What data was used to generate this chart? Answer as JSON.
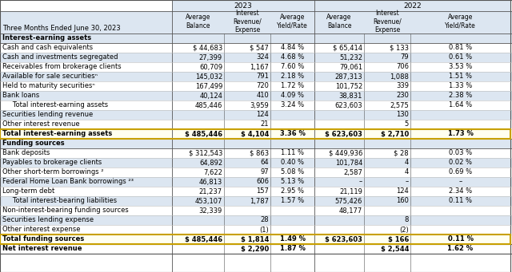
{
  "title_left": "Three Months Ended June 30, 2023",
  "section1_header": "Interest-earning assets",
  "section2_header": "Funding sources",
  "rows": [
    {
      "label": "Cash and cash equivalents",
      "s23_ab": "$ 44,683",
      "s23_ir": "$ 547",
      "s23_yr": "4.84 %",
      "s22_ab": "$ 65,414",
      "s22_ir": "$ 133",
      "s22_yr": "0.81 %",
      "indent": false,
      "bold": false,
      "highlight": false,
      "section": 1
    },
    {
      "label": "Cash and investments segregated",
      "s23_ab": "27,399",
      "s23_ir": "324",
      "s23_yr": "4.68 %",
      "s22_ab": "51,232",
      "s22_ir": "79",
      "s22_yr": "0.61 %",
      "indent": false,
      "bold": false,
      "highlight": false,
      "section": 1
    },
    {
      "label": "Receivables from brokerage clients",
      "s23_ab": "60,709",
      "s23_ir": "1,167",
      "s23_yr": "7.60 %",
      "s22_ab": "79,061",
      "s22_ir": "706",
      "s22_yr": "3.53 %",
      "indent": false,
      "bold": false,
      "highlight": false,
      "section": 1
    },
    {
      "label": "Available for sale securitiesⁿ",
      "s23_ab": "145,032",
      "s23_ir": "791",
      "s23_yr": "2.18 %",
      "s22_ab": "287,313",
      "s22_ir": "1,088",
      "s22_yr": "1.51 %",
      "indent": false,
      "bold": false,
      "highlight": false,
      "section": 1
    },
    {
      "label": "Held to maturity securitiesⁿ",
      "s23_ab": "167,499",
      "s23_ir": "720",
      "s23_yr": "1.72 %",
      "s22_ab": "101,752",
      "s22_ir": "339",
      "s22_yr": "1.33 %",
      "indent": false,
      "bold": false,
      "highlight": false,
      "section": 1
    },
    {
      "label": "Bank loans",
      "s23_ab": "40,124",
      "s23_ir": "410",
      "s23_yr": "4.09 %",
      "s22_ab": "38,831",
      "s22_ir": "230",
      "s22_yr": "2.38 %",
      "indent": false,
      "bold": false,
      "highlight": false,
      "section": 1
    },
    {
      "label": "   Total interest-earning assets",
      "s23_ab": "485,446",
      "s23_ir": "3,959",
      "s23_yr": "3.24 %",
      "s22_ab": "623,603",
      "s22_ir": "2,575",
      "s22_yr": "1.64 %",
      "indent": true,
      "bold": false,
      "highlight": false,
      "section": 1
    },
    {
      "label": "Securities lending revenue",
      "s23_ab": "",
      "s23_ir": "124",
      "s23_yr": "",
      "s22_ab": "",
      "s22_ir": "130",
      "s22_yr": "",
      "indent": false,
      "bold": false,
      "highlight": false,
      "section": 1
    },
    {
      "label": "Other interest revenue",
      "s23_ab": "",
      "s23_ir": "21",
      "s23_yr": "",
      "s22_ab": "",
      "s22_ir": "5",
      "s22_yr": "",
      "indent": false,
      "bold": false,
      "highlight": false,
      "section": 1
    },
    {
      "label": "Total interest-earning assets",
      "s23_ab": "$ 485,446",
      "s23_ir": "$ 4,104",
      "s23_yr": "3.36 %",
      "s22_ab": "$ 623,603",
      "s22_ir": "$ 2,710",
      "s22_yr": "1.73 %",
      "indent": false,
      "bold": true,
      "highlight": true,
      "section": 1
    },
    {
      "label": "Bank deposits",
      "s23_ab": "$ 312,543",
      "s23_ir": "$ 863",
      "s23_yr": "1.11 %",
      "s22_ab": "$ 449,936",
      "s22_ir": "$ 28",
      "s22_yr": "0.03 %",
      "indent": false,
      "bold": false,
      "highlight": false,
      "section": 2
    },
    {
      "label": "Payables to brokerage clients",
      "s23_ab": "64,892",
      "s23_ir": "64",
      "s23_yr": "0.40 %",
      "s22_ab": "101,784",
      "s22_ir": "4",
      "s22_yr": "0.02 %",
      "indent": false,
      "bold": false,
      "highlight": false,
      "section": 2
    },
    {
      "label": "Other short-term borrowings ²",
      "s23_ab": "7,622",
      "s23_ir": "97",
      "s23_yr": "5.08 %",
      "s22_ab": "2,587",
      "s22_ir": "4",
      "s22_yr": "0.69 %",
      "indent": false,
      "bold": false,
      "highlight": false,
      "section": 2
    },
    {
      "label": "Federal Home Loan Bank borrowings ²³",
      "s23_ab": "46,813",
      "s23_ir": "606",
      "s23_yr": "5.13 %",
      "s22_ab": "–",
      "s22_ir": "–",
      "s22_yr": "–",
      "indent": false,
      "bold": false,
      "highlight": false,
      "section": 2
    },
    {
      "label": "Long-term debt",
      "s23_ab": "21,237",
      "s23_ir": "157",
      "s23_yr": "2.95 %",
      "s22_ab": "21,119",
      "s22_ir": "124",
      "s22_yr": "2.34 %",
      "indent": false,
      "bold": false,
      "highlight": false,
      "section": 2
    },
    {
      "label": "   Total interest-bearing liabilities",
      "s23_ab": "453,107",
      "s23_ir": "1,787",
      "s23_yr": "1.57 %",
      "s22_ab": "575,426",
      "s22_ir": "160",
      "s22_yr": "0.11 %",
      "indent": true,
      "bold": false,
      "highlight": false,
      "section": 2
    },
    {
      "label": "Non-interest-bearing funding sources",
      "s23_ab": "32,339",
      "s23_ir": "",
      "s23_yr": "",
      "s22_ab": "48,177",
      "s22_ir": "",
      "s22_yr": "",
      "indent": false,
      "bold": false,
      "highlight": false,
      "section": 2
    },
    {
      "label": "Securities lending expense",
      "s23_ab": "",
      "s23_ir": "28",
      "s23_yr": "",
      "s22_ab": "",
      "s22_ir": "8",
      "s22_yr": "",
      "indent": false,
      "bold": false,
      "highlight": false,
      "section": 2
    },
    {
      "label": "Other interest expense",
      "s23_ab": "",
      "s23_ir": "(1)",
      "s23_yr": "",
      "s22_ab": "",
      "s22_ir": "(2)",
      "s22_yr": "",
      "indent": false,
      "bold": false,
      "highlight": false,
      "section": 2
    },
    {
      "label": "Total funding sources",
      "s23_ab": "$ 485,446",
      "s23_ir": "$ 1,814",
      "s23_yr": "1.49 %",
      "s22_ab": "$ 623,603",
      "s22_ir": "$ 166",
      "s22_yr": "0.11 %",
      "indent": false,
      "bold": true,
      "highlight": true,
      "section": 2
    },
    {
      "label": "Net interest revenue",
      "s23_ab": "",
      "s23_ir": "$ 2,290",
      "s23_yr": "1.87 %",
      "s22_ab": "",
      "s22_ir": "$ 2,544",
      "s22_yr": "1.62 %",
      "indent": false,
      "bold": true,
      "highlight": false,
      "section": 3
    }
  ],
  "light_blue": "#dce6f1",
  "highlight_yellow": "#fffff0",
  "highlight_border": "#c8a000",
  "col_border": "#888888",
  "row_border_light": "#cccccc",
  "row_border_dark": "#555555"
}
